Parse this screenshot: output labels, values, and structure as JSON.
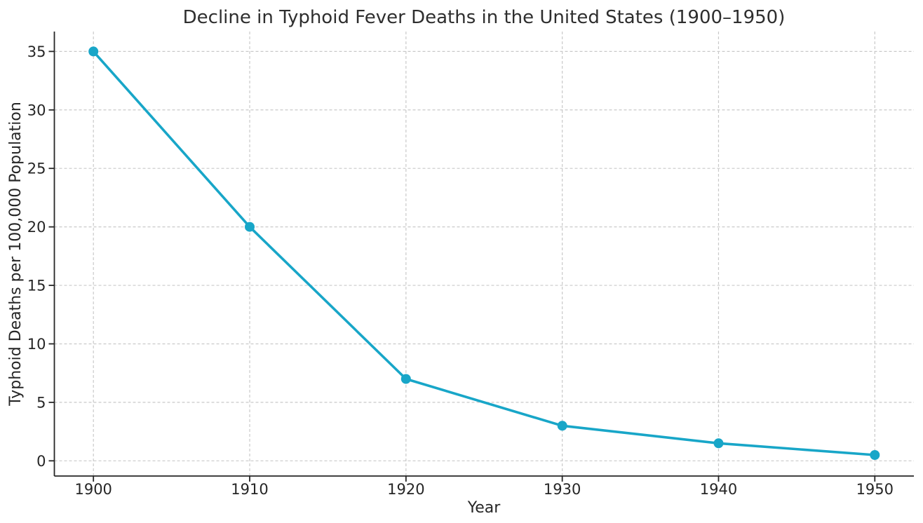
{
  "chart_data": {
    "type": "line",
    "title": "Decline in Typhoid Fever Deaths in the United States (1900–1950)",
    "xlabel": "Year",
    "ylabel": "Typhoid Deaths per 100,000 Population",
    "x": [
      1900,
      1910,
      1920,
      1930,
      1940,
      1950
    ],
    "series": [
      {
        "name": "Typhoid deaths per 100,000 population",
        "values": [
          35,
          20,
          7,
          3,
          1.5,
          0.5
        ],
        "color": "#18a6c8",
        "marker": "circle"
      }
    ],
    "xticks": [
      1900,
      1910,
      1920,
      1930,
      1940,
      1950
    ],
    "yticks": [
      0,
      5,
      10,
      15,
      20,
      25,
      30,
      35
    ],
    "xlim": [
      1897.5,
      1952.5
    ],
    "ylim": [
      -1.3,
      36.7
    ],
    "grid": true,
    "grid_style": "dashed",
    "grid_color": "#c9c9c9",
    "axis_color": "#262626",
    "text_color": "#262626",
    "background_color": "#ffffff",
    "legend": "none",
    "marker_radius": 7,
    "line_width": 3.6
  }
}
